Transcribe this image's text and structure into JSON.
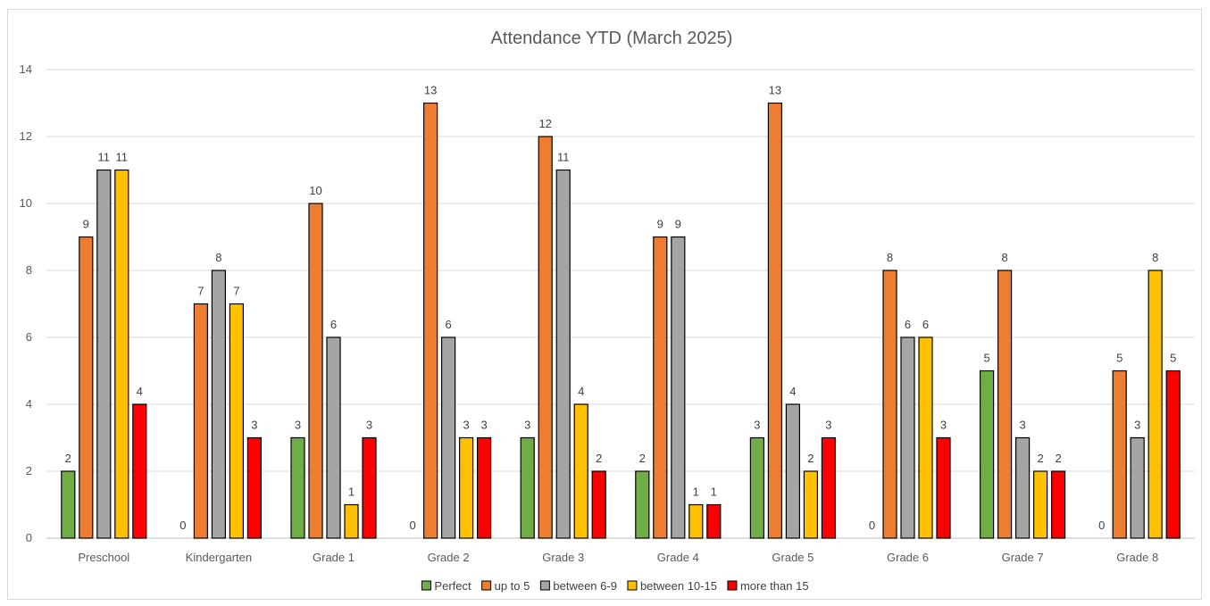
{
  "chart_data": {
    "type": "bar",
    "title": "Attendance YTD (March 2025)",
    "xlabel": "",
    "ylabel": "",
    "ylim": [
      0,
      14
    ],
    "yticks": [
      0,
      2,
      4,
      6,
      8,
      10,
      12,
      14
    ],
    "grid": true,
    "legend_position": "bottom",
    "categories": [
      "Preschool",
      "Kindergarten",
      "Grade 1",
      "Grade 2",
      "Grade 3",
      "Grade 4",
      "Grade 5",
      "Grade 6",
      "Grade 7",
      "Grade 8"
    ],
    "series": [
      {
        "name": "Perfect",
        "color": "#70ad47",
        "values": [
          2,
          0,
          3,
          0,
          3,
          2,
          3,
          0,
          5,
          0
        ]
      },
      {
        "name": "up to 5",
        "color": "#ed7d31",
        "values": [
          9,
          7,
          10,
          13,
          12,
          9,
          13,
          8,
          8,
          5
        ]
      },
      {
        "name": "between 6-9",
        "color": "#a5a5a5",
        "values": [
          11,
          8,
          6,
          6,
          11,
          9,
          4,
          6,
          3,
          3
        ]
      },
      {
        "name": "between 10-15",
        "color": "#ffc000",
        "values": [
          11,
          7,
          1,
          3,
          4,
          1,
          2,
          6,
          2,
          8
        ]
      },
      {
        "name": "more than 15",
        "color": "#ff0000",
        "values": [
          4,
          3,
          3,
          3,
          2,
          1,
          3,
          3,
          2,
          5
        ]
      }
    ]
  }
}
